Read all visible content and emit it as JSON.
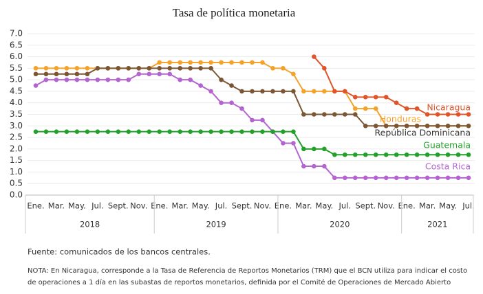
{
  "chart_data": {
    "type": "line",
    "title": "Tasa de política monetaria",
    "source": "Fuente: comunicados de los bancos centrales.",
    "note": [
      "NOTA: En Nicaragua, corresponde a la Tasa de Referencia de Reportos Monetarios (TRM) que el BCN utiliza para indicar el costo",
      "de operaciones a 1 día en las subastas de reportos monetarios, definida por el Comité de Operaciones de Mercado Abierto"
    ],
    "categories": [
      "Ene.",
      null,
      "Mar.",
      null,
      "May.",
      null,
      "Jul.",
      null,
      "Sept.",
      null,
      "Nov.",
      null,
      "Ene.",
      null,
      "Mar.",
      null,
      "May.",
      null,
      "Jul.",
      null,
      "Sept.",
      null,
      "Nov.",
      null,
      "Ene.",
      null,
      "Mar.",
      null,
      "May.",
      null,
      "Jul.",
      null,
      "Sept.",
      null,
      "Nov.",
      null,
      "Ene.",
      null,
      "Mar.",
      null,
      "May.",
      null,
      "Jul."
    ],
    "year_groups": [
      "2018",
      "2019",
      "2020",
      "2021"
    ],
    "ylim": [
      0,
      7
    ],
    "yticks": [
      {
        "value": 0,
        "label": "0.0"
      },
      {
        "value": 0.5,
        "label": "0.5"
      },
      {
        "value": 1,
        "label": "1.0"
      },
      {
        "value": 1.5,
        "label": "1.5"
      },
      {
        "value": 2,
        "label": "2.0"
      },
      {
        "value": 2.5,
        "label": "2.5"
      },
      {
        "value": 3,
        "label": "3.0"
      },
      {
        "value": 3.5,
        "label": "3.5"
      },
      {
        "value": 4,
        "label": "4.0"
      },
      {
        "value": 4.5,
        "label": "4.5"
      },
      {
        "value": 5,
        "label": "5.0"
      },
      {
        "value": 5.5,
        "label": "5.5"
      },
      {
        "value": 6,
        "label": "6.0"
      },
      {
        "value": 6.5,
        "label": "6.5"
      },
      {
        "value": 7,
        "label": "7.0"
      }
    ],
    "grid": true,
    "series": [
      {
        "name": "Nicaragua",
        "color": "#e0542a",
        "values": [
          null,
          null,
          null,
          null,
          null,
          null,
          null,
          null,
          null,
          null,
          null,
          null,
          null,
          null,
          null,
          null,
          null,
          null,
          null,
          null,
          null,
          null,
          null,
          null,
          null,
          null,
          null,
          6.0,
          5.5,
          4.5,
          4.5,
          4.25,
          4.25,
          4.25,
          4.25,
          4.0,
          3.75,
          3.75,
          3.5,
          3.5,
          3.5,
          3.5,
          3.5
        ]
      },
      {
        "name": "Honduras",
        "color": "#f4a22c",
        "values": [
          5.5,
          5.5,
          5.5,
          5.5,
          5.5,
          5.5,
          5.5,
          5.5,
          5.5,
          5.5,
          5.5,
          5.5,
          5.75,
          5.75,
          5.75,
          5.75,
          5.75,
          5.75,
          5.75,
          5.75,
          5.75,
          5.75,
          5.75,
          5.5,
          5.5,
          5.25,
          4.5,
          4.5,
          4.5,
          4.5,
          4.5,
          3.75,
          3.75,
          3.75,
          3.0,
          3.0,
          3.0,
          3.0,
          3.0,
          3.0,
          3.0,
          3.0,
          3.0
        ]
      },
      {
        "name": "República Dominicana",
        "color": "#7a5634",
        "values": [
          5.25,
          5.25,
          5.25,
          5.25,
          5.25,
          5.25,
          5.5,
          5.5,
          5.5,
          5.5,
          5.5,
          5.5,
          5.5,
          5.5,
          5.5,
          5.5,
          5.5,
          5.5,
          5.0,
          4.75,
          4.5,
          4.5,
          4.5,
          4.5,
          4.5,
          4.5,
          3.5,
          3.5,
          3.5,
          3.5,
          3.5,
          3.5,
          3.0,
          3.0,
          3.0,
          3.0,
          3.0,
          3.0,
          3.0,
          3.0,
          3.0,
          3.0,
          3.0
        ]
      },
      {
        "name": "Guatemala",
        "color": "#23a02a",
        "values": [
          2.75,
          2.75,
          2.75,
          2.75,
          2.75,
          2.75,
          2.75,
          2.75,
          2.75,
          2.75,
          2.75,
          2.75,
          2.75,
          2.75,
          2.75,
          2.75,
          2.75,
          2.75,
          2.75,
          2.75,
          2.75,
          2.75,
          2.75,
          2.75,
          2.75,
          2.75,
          2.0,
          2.0,
          2.0,
          1.75,
          1.75,
          1.75,
          1.75,
          1.75,
          1.75,
          1.75,
          1.75,
          1.75,
          1.75,
          1.75,
          1.75,
          1.75,
          1.75
        ]
      },
      {
        "name": "Costa Rica",
        "color": "#b464d0",
        "values": [
          4.75,
          5.0,
          5.0,
          5.0,
          5.0,
          5.0,
          5.0,
          5.0,
          5.0,
          5.0,
          5.25,
          5.25,
          5.25,
          5.25,
          5.0,
          5.0,
          4.75,
          4.5,
          4.0,
          4.0,
          3.75,
          3.25,
          3.25,
          2.75,
          2.25,
          2.25,
          1.25,
          1.25,
          1.25,
          0.75,
          0.75,
          0.75,
          0.75,
          0.75,
          0.75,
          0.75,
          0.75,
          0.75,
          0.75,
          0.75,
          0.75,
          0.75,
          0.75
        ]
      }
    ]
  }
}
